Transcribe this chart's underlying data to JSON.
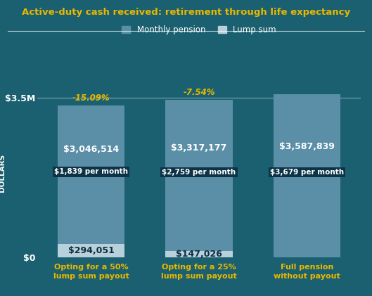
{
  "title": "Active-duty cash received: retirement through life expectancy",
  "background_color": "#1b6070",
  "plot_bg_color": "#1b6070",
  "categories": [
    "Opting for a 50%\nlump sum payout",
    "Opting for a 25%\nlump sum payout",
    "Full pension\nwithout payout"
  ],
  "lump_sum_values": [
    294051,
    147026,
    0
  ],
  "pension_values": [
    3046514,
    3317177,
    3587839
  ],
  "lump_sum_color": "#b8d0db",
  "pension_color": "#5b8fa8",
  "pension_color_full": "#6699b0",
  "bar_width": 0.62,
  "ylim": [
    0,
    3700000
  ],
  "ylabel": "DOLLARS",
  "legend_monthly_label": "Monthly pension",
  "legend_lump_label": "Lump sum",
  "title_color": "#e8b800",
  "category_color": "#e8b800",
  "pct_labels": [
    "-15.09%",
    "-7.54%"
  ],
  "pct_color": "#e8b800",
  "bar1_pension_label": "$3,046,514",
  "bar1_pension_sublabel": "$1,839 per month",
  "bar2_pension_label": "$3,317,177",
  "bar2_pension_sublabel": "$2,759 per month",
  "bar3_pension_label": "$3,587,839",
  "bar3_pension_sublabel": "$3,679 per month",
  "bar1_lump_label": "$294,051",
  "bar2_lump_label": "$147,026",
  "label_color_dark": "#0d2d3e",
  "sublabel_bg": "#0d3347"
}
